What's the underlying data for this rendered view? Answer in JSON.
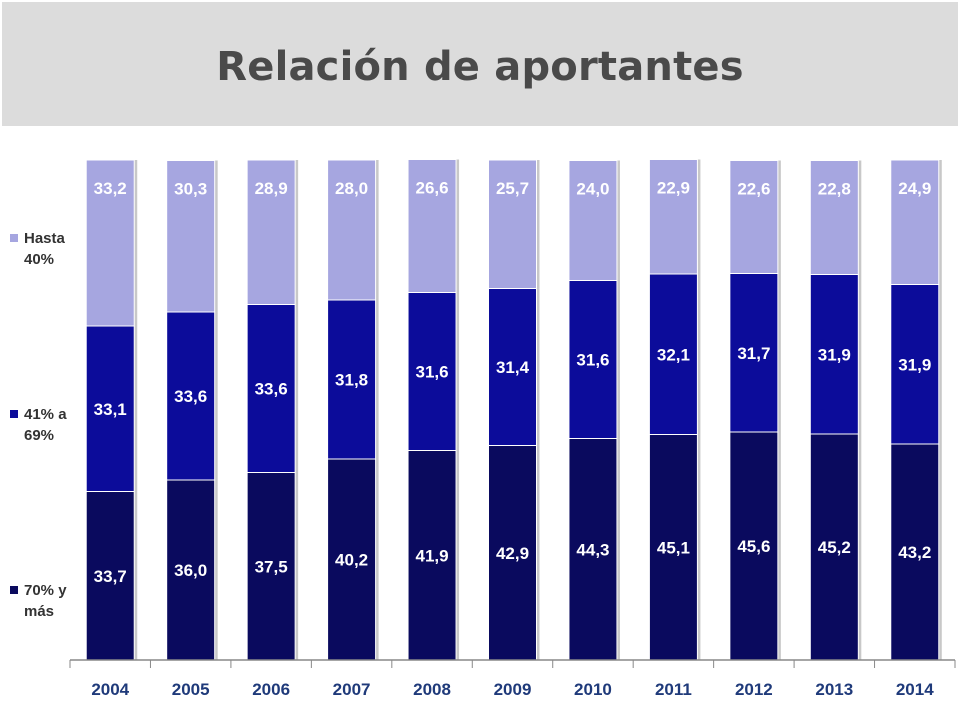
{
  "header": {
    "title": "Relación de aportantes"
  },
  "chart_data": {
    "type": "bar",
    "stacked": true,
    "title": "Relación de aportantes",
    "xlabel": "",
    "ylabel": "",
    "ylim": [
      0,
      100
    ],
    "grid": false,
    "legend_position": "left",
    "categories": [
      "2004",
      "2005",
      "2006",
      "2007",
      "2008",
      "2009",
      "2010",
      "2011",
      "2012",
      "2013",
      "2014"
    ],
    "series": [
      {
        "name": "70% y más",
        "color": "#0a0a5e",
        "values": [
          33.7,
          36.0,
          37.5,
          40.2,
          41.9,
          42.9,
          44.3,
          45.1,
          45.6,
          45.2,
          43.2
        ],
        "labels": [
          "33,7",
          "36,0",
          "37,5",
          "40,2",
          "41,9",
          "42,9",
          "44,3",
          "45,1",
          "45,6",
          "45,2",
          "43,2"
        ]
      },
      {
        "name": "41% a 69%",
        "color": "#0c0c9a",
        "values": [
          33.1,
          33.6,
          33.6,
          31.8,
          31.6,
          31.4,
          31.6,
          32.1,
          31.7,
          31.9,
          31.9
        ],
        "labels": [
          "33,1",
          "33,6",
          "33,6",
          "31,8",
          "31,6",
          "31,4",
          "31,6",
          "32,1",
          "31,7",
          "31,9",
          "31,9"
        ]
      },
      {
        "name": "Hasta 40%",
        "color": "#a6a6e0",
        "values": [
          33.2,
          30.3,
          28.9,
          28.0,
          26.6,
          25.7,
          24.0,
          22.9,
          22.6,
          22.8,
          24.9
        ],
        "labels": [
          "33,2",
          "30,3",
          "28,9",
          "28,0",
          "26,6",
          "25,7",
          "24,0",
          "22,9",
          "22,6",
          "22,8",
          "24,9"
        ]
      }
    ]
  },
  "legend": {
    "items": [
      {
        "line1": "Hasta",
        "line2": "40%",
        "color": "#a6a6e0"
      },
      {
        "line1": "41% a",
        "line2": "69%",
        "color": "#0c0c9a"
      },
      {
        "line1": "70% y",
        "line2": "más",
        "color": "#0a0a5e"
      }
    ]
  }
}
